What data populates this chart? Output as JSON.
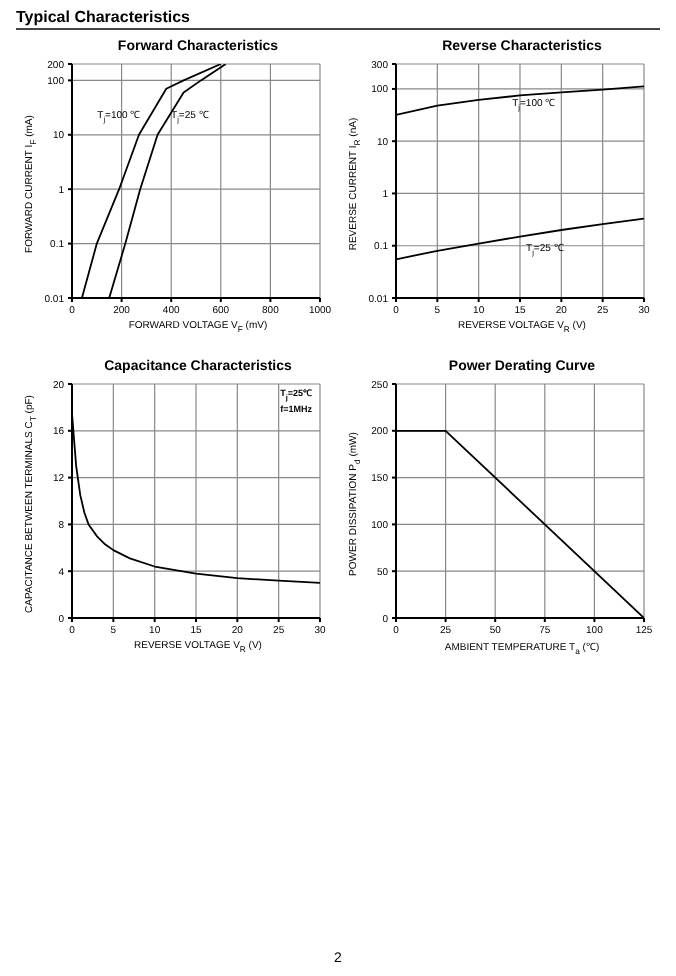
{
  "chart_data": [
    {
      "type": "line",
      "title": "Forward    Characteristics",
      "xlabel": "FORWARD VOLTAGE  V$_{F}$  (mV)",
      "ylabel": "FORWARD CURRENT  I$_{F}$  (mA)",
      "log": "y",
      "grid": true,
      "xlim": [
        0,
        1000
      ],
      "xticks": [
        0,
        200,
        400,
        600,
        800,
        1000
      ],
      "ylim": [
        0.01,
        200
      ],
      "yticks": [
        0.01,
        0.1,
        1,
        10,
        100,
        200
      ],
      "annotations": [
        "Typical Characteristics",
        {
          "text": "T$_{j}$=100 ℃",
          "x": 300,
          "y": 20
        },
        {
          "text": "T$_{j}$=25 ℃",
          "x": 375,
          "y": 20
        }
      ],
      "series": [
        {
          "color": "#000000",
          "x": [
            40,
            100,
            190,
            270,
            380,
            450,
            600
          ],
          "values": [
            0.01,
            0.1,
            1,
            10,
            70,
            100,
            200
          ]
        },
        {
          "color": "#000000",
          "x": [
            150,
            215,
            275,
            345,
            450,
            520,
            620
          ],
          "values": [
            0.01,
            0.1,
            1,
            10,
            60,
            100,
            200
          ]
        }
      ]
    },
    {
      "type": "line",
      "title": "Reverse    Characteristics",
      "xlabel": "REVERSE VOLTAGE  V$_{R}$  (V)",
      "ylabel": "REVERSE CURRENT  I$_{R}$  (nA)",
      "log": "y",
      "grid": true,
      "xlim": [
        0,
        30
      ],
      "xticks": [
        0,
        5,
        10,
        15,
        20,
        25,
        30
      ],
      "ylim": [
        0.01,
        300
      ],
      "yticks": [
        0.01,
        0.1,
        1,
        10,
        100,
        300
      ],
      "annotations": [
        {
          "text": "T$_{j}$=100 ℃",
          "x": 20,
          "y": 86
        },
        {
          "text": "T$_{j}$=25 ℃",
          "x": 15,
          "y": 0.15
        }
      ],
      "series": [
        {
          "color": "#000000",
          "x": [
            0,
            5,
            10,
            15,
            20,
            25,
            30
          ],
          "values": [
            32,
            48,
            62,
            75,
            86,
            97,
            112
          ]
        },
        {
          "color": "#000000",
          "x": [
            0,
            5,
            10,
            15,
            20,
            25,
            30
          ],
          "values": [
            0.055,
            0.08,
            0.11,
            0.15,
            0.2,
            0.26,
            0.33
          ]
        }
      ]
    },
    {
      "type": "line",
      "title": "Capacitance Characteristics",
      "xlabel": "REVERSE VOLTAGE  V$_{R}$  (V)",
      "ylabel": "CAPACITANCE BETWEEN TERMINALS C$_{T}$ (pF)",
      "grid": true,
      "xlim": [
        0,
        30
      ],
      "xticks": [
        0,
        5,
        10,
        15,
        20,
        25,
        30
      ],
      "ylim": [
        0,
        20
      ],
      "yticks": [
        0,
        4,
        8,
        12,
        16,
        20
      ],
      "annotations": [
        "T$_{j}$=25℃",
        "f=1MHz"
      ],
      "series": [
        {
          "color": "#000000",
          "x": [
            0,
            0.5,
            1,
            1.5,
            2,
            3,
            4,
            5,
            7,
            10,
            15,
            20,
            25,
            30
          ],
          "values": [
            17.5,
            13,
            10.5,
            9,
            8,
            7,
            6.3,
            5.8,
            5.1,
            4.4,
            3.8,
            3.4,
            3.2,
            3.0
          ]
        }
      ]
    },
    {
      "type": "line",
      "title": "Power Derating Curve",
      "xlabel": "AMBIENT TEMPERATURE  T$_{a}$  (℃)",
      "ylabel": "POWER DISSIPATION  P$_{d}$  (mW)",
      "grid": true,
      "xlim": [
        0,
        125
      ],
      "xticks": [
        0,
        25,
        50,
        75,
        100,
        125
      ],
      "ylim": [
        0,
        250
      ],
      "yticks": [
        0,
        50,
        100,
        150,
        200,
        250
      ],
      "annotations": [
        "2"
      ],
      "series": [
        {
          "color": "#000000",
          "x": [
            0,
            25,
            125
          ],
          "values": [
            200,
            200,
            0
          ]
        }
      ]
    }
  ]
}
